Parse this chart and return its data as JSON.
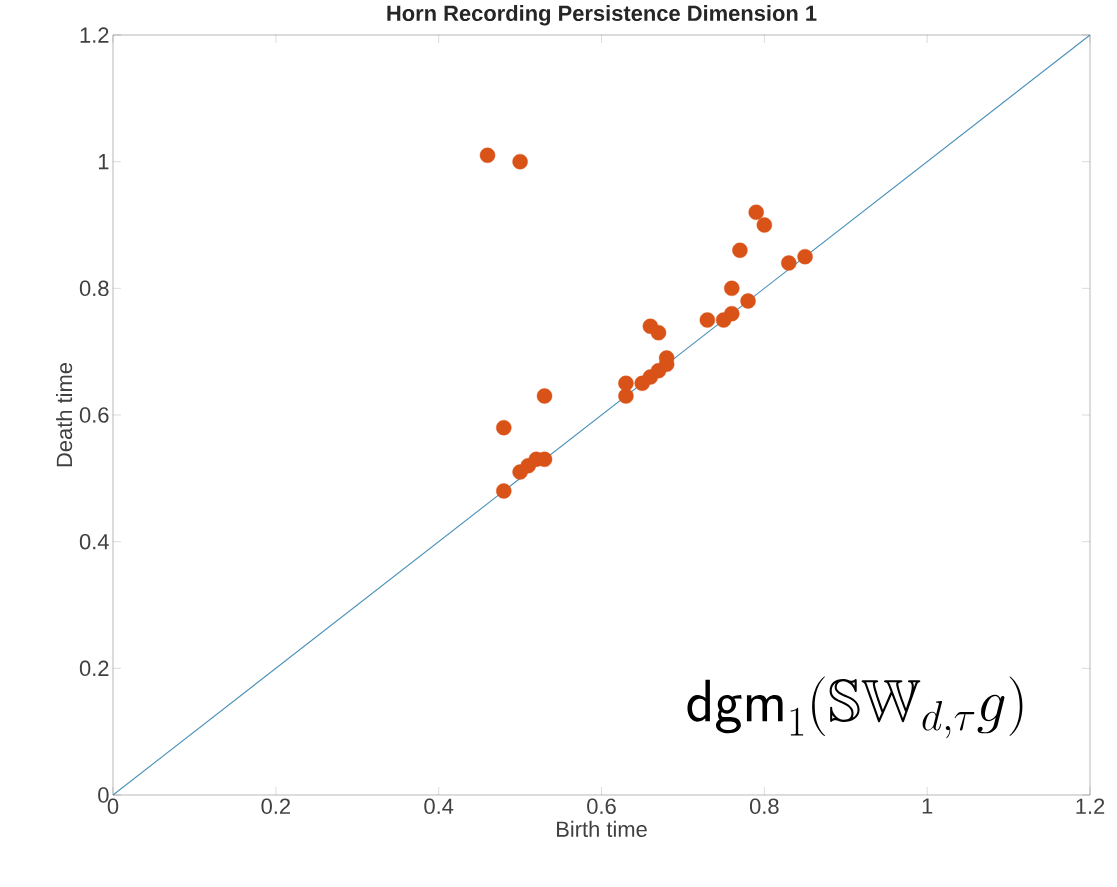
{
  "chart_data": {
    "type": "scatter",
    "title": "Horn Recording Persistence Dimension 1",
    "xlabel": "Birth time",
    "ylabel": "Death time",
    "xlim": [
      0,
      1.2
    ],
    "ylim": [
      0,
      1.2
    ],
    "xticks": [
      0,
      0.2,
      0.4,
      0.6,
      0.8,
      1,
      1.2
    ],
    "yticks": [
      0,
      0.2,
      0.4,
      0.6,
      0.8,
      1,
      1.2
    ],
    "grid": false,
    "annotations": [
      "\\mathsf{dgm}_1(\\mathbb{SW}_{d,\\tau}g)"
    ],
    "series": [
      {
        "type": "line",
        "color": "#4a90b8",
        "marker": "none",
        "x": [
          0,
          1.2
        ],
        "values": [
          0,
          1.2
        ]
      },
      {
        "marker": "circle",
        "color": "#d95319",
        "x": [
          0.46,
          0.5,
          0.79,
          0.8,
          0.77,
          0.83,
          0.85,
          0.76,
          0.78,
          0.76,
          0.75,
          0.73,
          0.66,
          0.67,
          0.68,
          0.68,
          0.67,
          0.66,
          0.65,
          0.63,
          0.63,
          0.53,
          0.48,
          0.53,
          0.52,
          0.51,
          0.5,
          0.48
        ],
        "values": [
          1.01,
          1.0,
          0.92,
          0.9,
          0.86,
          0.84,
          0.85,
          0.8,
          0.78,
          0.76,
          0.75,
          0.75,
          0.74,
          0.73,
          0.69,
          0.68,
          0.67,
          0.66,
          0.65,
          0.65,
          0.63,
          0.63,
          0.58,
          0.53,
          0.53,
          0.52,
          0.51,
          0.48
        ]
      }
    ]
  }
}
